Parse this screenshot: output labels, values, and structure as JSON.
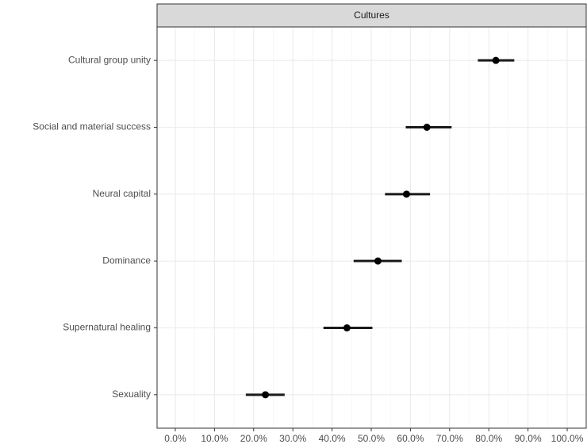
{
  "chart_data": {
    "type": "dot-errorbar",
    "facet": "Cultures",
    "categories": [
      "Cultural group unity",
      "Social and material success",
      "Neural capital",
      "Dominance",
      "Supernatural healing",
      "Sexuality"
    ],
    "series": [
      {
        "name": "Cultures",
        "color": "#000000",
        "values": [
          81.8,
          64.2,
          59.0,
          51.7,
          43.8,
          23.0
        ],
        "lower": [
          77.2,
          58.8,
          53.5,
          45.5,
          37.8,
          18.0
        ],
        "upper": [
          86.5,
          70.5,
          65.0,
          57.8,
          50.3,
          27.9
        ]
      }
    ],
    "xlim": [
      -4.65,
      104.85
    ],
    "xticks": [
      {
        "value": 0,
        "label": "0.0%"
      },
      {
        "value": 10,
        "label": "10.0%"
      },
      {
        "value": 20,
        "label": "20.0%"
      },
      {
        "value": 30,
        "label": "30.0%"
      },
      {
        "value": 40,
        "label": "40.0%"
      },
      {
        "value": 50,
        "label": "50.0%"
      },
      {
        "value": 60,
        "label": "60.0%"
      },
      {
        "value": 70,
        "label": "70.0%"
      },
      {
        "value": 80,
        "label": "80.0%"
      },
      {
        "value": 90,
        "label": "90.0%"
      },
      {
        "value": 100,
        "label": "100.0%"
      }
    ],
    "grid": true
  }
}
